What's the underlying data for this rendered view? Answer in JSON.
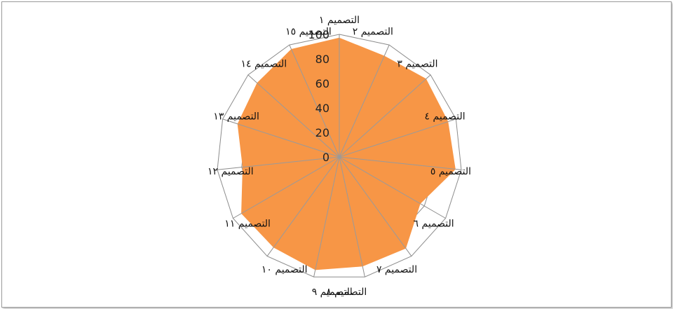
{
  "chart_data": {
    "type": "radar",
    "categories": [
      "التصميم ١",
      "التصميم ٢",
      "التصميم ٣",
      "التصميم ٤",
      "التصميم ٥",
      "التصميم ٦",
      "التصميم ٧",
      "التصميم ٨",
      "التصميم ٩",
      "التصميم ١٠",
      "التصميم ١١",
      "التصميم ١٢",
      "التصميم ١٣",
      "التصميم ١٤",
      "التصميم ١٥"
    ],
    "series": [
      {
        "values": [
          97,
          90,
          95,
          93,
          95,
          76,
          92,
          91,
          94,
          91,
          92,
          79,
          87,
          90,
          96
        ],
        "color": "#F79646"
      }
    ],
    "r_ticks": [
      "0",
      "20",
      "40",
      "60",
      "80",
      "100"
    ],
    "rlim": [
      0,
      100
    ],
    "grid": true,
    "legend": "none"
  }
}
